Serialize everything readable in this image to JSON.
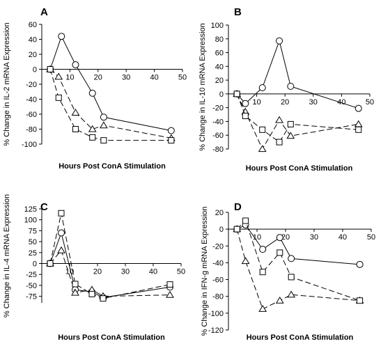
{
  "chart_data": [
    {
      "type": "line",
      "panel": "A",
      "ylabel": "% Change in IL-2 mRNA Expression",
      "xlabel": "Hours Post ConA Stimulation",
      "xlim": [
        0,
        50
      ],
      "ylim": [
        -100,
        60
      ],
      "xticks": [
        10,
        20,
        30,
        40,
        50
      ],
      "yticks": [
        60,
        40,
        20,
        0,
        -20,
        -40,
        -60,
        -80,
        -100
      ],
      "series": [
        {
          "marker": "circle",
          "style": "solid",
          "x": [
            3,
            7,
            12,
            18,
            22,
            46
          ],
          "y": [
            0,
            44,
            6,
            -32,
            -64,
            -82
          ]
        },
        {
          "marker": "triangle",
          "style": "dashed",
          "x": [
            3,
            6,
            12,
            18,
            22,
            46
          ],
          "y": [
            0,
            -10,
            -58,
            -80,
            -75,
            -92
          ]
        },
        {
          "marker": "square",
          "style": "dashed",
          "x": [
            3,
            6,
            12,
            18,
            22,
            46
          ],
          "y": [
            0,
            -38,
            -80,
            -91,
            -95,
            -95
          ]
        }
      ]
    },
    {
      "type": "line",
      "panel": "B",
      "ylabel": "% Change in IL-10 mRNA Expression",
      "xlabel": "Hours Post ConA Stimulation",
      "xlim": [
        0,
        50
      ],
      "ylim": [
        -80,
        100
      ],
      "xticks": [
        10,
        20,
        30,
        40,
        50
      ],
      "yticks": [
        100,
        80,
        60,
        40,
        20,
        0,
        -20,
        -40,
        -60,
        -80
      ],
      "series": [
        {
          "marker": "circle",
          "style": "solid",
          "x": [
            3,
            6,
            12,
            18,
            22,
            46
          ],
          "y": [
            0,
            -14,
            9,
            77,
            11,
            -21
          ]
        },
        {
          "marker": "triangle",
          "style": "dashed",
          "x": [
            3,
            6,
            12,
            18,
            22,
            46
          ],
          "y": [
            0,
            -26,
            -80,
            -38,
            -61,
            -44
          ]
        },
        {
          "marker": "square",
          "style": "dashed",
          "x": [
            3,
            6,
            12,
            18,
            22,
            46
          ],
          "y": [
            0,
            -32,
            -52,
            -70,
            -44,
            -52
          ]
        }
      ]
    },
    {
      "type": "line",
      "panel": "C",
      "ylabel": "% Change in IL-4 mRNA Expression",
      "xlabel": "Hours Post ConA Stimulation",
      "xlim": [
        0,
        50
      ],
      "ylim": [
        -90,
        125
      ],
      "xticks": [
        10,
        20,
        30,
        40,
        50
      ],
      "yticks": [
        125,
        100,
        75,
        50,
        25,
        0,
        -25,
        -50,
        -75
      ],
      "series": [
        {
          "marker": "circle",
          "style": "solid",
          "x": [
            3,
            7,
            12,
            18,
            22,
            46
          ],
          "y": [
            0,
            70,
            -60,
            -65,
            -78,
            -54
          ]
        },
        {
          "marker": "triangle",
          "style": "dashed",
          "x": [
            3,
            7,
            12,
            18,
            22,
            46
          ],
          "y": [
            0,
            30,
            -67,
            -60,
            -75,
            -72
          ]
        },
        {
          "marker": "square",
          "style": "dashed",
          "x": [
            3,
            7,
            12,
            18,
            22,
            46
          ],
          "y": [
            0,
            115,
            -47,
            -70,
            -80,
            -48
          ]
        }
      ]
    },
    {
      "type": "line",
      "panel": "D",
      "ylabel": "% Change in IFN-g mRNA Expression",
      "xlabel": "Hours Post ConA Stimulation",
      "xlim": [
        0,
        50
      ],
      "ylim": [
        -120,
        20
      ],
      "xticks": [
        10,
        20,
        30,
        40,
        50
      ],
      "yticks": [
        20,
        0,
        -20,
        -40,
        -60,
        -80,
        -100,
        -120
      ],
      "series": [
        {
          "marker": "circle",
          "style": "solid",
          "x": [
            3,
            6,
            12,
            18,
            22,
            46
          ],
          "y": [
            0,
            5,
            -24,
            -10,
            -35,
            -42
          ]
        },
        {
          "marker": "triangle",
          "style": "dashed",
          "x": [
            3,
            6,
            12,
            18,
            22,
            46
          ],
          "y": [
            0,
            -38,
            -95,
            -85,
            -78,
            -85
          ]
        },
        {
          "marker": "square",
          "style": "dashed",
          "x": [
            3,
            6,
            12,
            18,
            22,
            46
          ],
          "y": [
            0,
            10,
            -51,
            -28,
            -57,
            -85
          ]
        }
      ]
    }
  ]
}
